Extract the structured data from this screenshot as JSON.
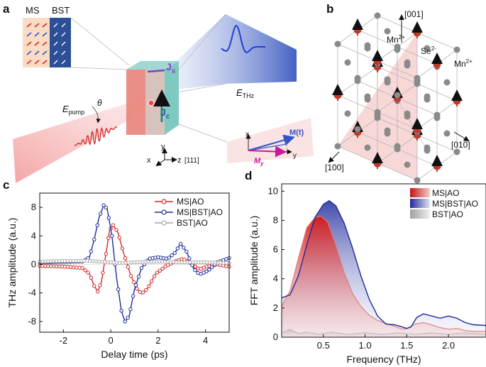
{
  "panels": {
    "a": {
      "label": "a",
      "ms_label": "MS",
      "bst_label": "BST",
      "js_label": "J",
      "js_sub": "s",
      "jc_label": "J",
      "jc_sub": "c",
      "ethz_label": "E",
      "ethz_sub": "THz",
      "epump_label": "E",
      "epump_sub": "pump",
      "theta_label": "θ",
      "axis_x": "x",
      "axis_y": "y",
      "axis_z": "z",
      "axis_111": "[111]",
      "inset_x": "x",
      "inset_y": "y",
      "m_t": "M(t)",
      "m_y": "M",
      "m_y_sub": "y"
    },
    "b": {
      "label": "b",
      "dir_001": "[001]",
      "dir_010": "[010]",
      "dir_100": "[100]",
      "mn_top": "Mn",
      "mn_top_sup": "2+",
      "mn_right": "Mn",
      "mn_right_sup": "2+",
      "se": "Se",
      "se_sup": "2-"
    }
  },
  "colors": {
    "ms": "#d62728",
    "msbst": "#1f2a9c",
    "bst": "#a6a6a6",
    "mn_red": "#c0392b",
    "mn_blue": "#3050d0",
    "se_gray": "#8a8a8a"
  },
  "chart_data": [
    {
      "id": "c",
      "panel_label": "c",
      "type": "line",
      "xlabel": "Delay time (ps)",
      "ylabel": "THz amplitude (a.u.)",
      "xlim": [
        -3,
        5
      ],
      "ylim": [
        -9.5,
        10
      ],
      "xticks": [
        -2,
        0,
        2,
        4
      ],
      "yticks": [
        -8,
        -4,
        0,
        4,
        8
      ],
      "legend_position": "top-right",
      "series": [
        {
          "name": "MS|AO",
          "points": [
            [
              -3,
              -0.2
            ],
            [
              -2,
              -0.3
            ],
            [
              -1.2,
              -0.5
            ],
            [
              -0.9,
              -1.3
            ],
            [
              -0.7,
              -3.0
            ],
            [
              -0.55,
              -3.8
            ],
            [
              -0.4,
              -2.5
            ],
            [
              -0.2,
              1.5
            ],
            [
              -0.05,
              4.8
            ],
            [
              0.1,
              5.5
            ],
            [
              0.3,
              4.5
            ],
            [
              0.55,
              1.5
            ],
            [
              0.85,
              -1.6
            ],
            [
              1.1,
              -3.4
            ],
            [
              1.3,
              -4.1
            ],
            [
              1.55,
              -3.4
            ],
            [
              1.9,
              -1.3
            ],
            [
              2.3,
              -0.3
            ],
            [
              2.7,
              0.4
            ],
            [
              3.05,
              0.8
            ],
            [
              3.4,
              0.1
            ],
            [
              3.75,
              -0.7
            ],
            [
              4.05,
              -0.3
            ],
            [
              4.5,
              0.0
            ],
            [
              5,
              -0.3
            ]
          ]
        },
        {
          "name": "MS|BST|AO",
          "points": [
            [
              -3,
              0.3
            ],
            [
              -2,
              0.35
            ],
            [
              -1.2,
              0.4
            ],
            [
              -0.9,
              1.0
            ],
            [
              -0.7,
              3.5
            ],
            [
              -0.5,
              6.5
            ],
            [
              -0.3,
              8.3
            ],
            [
              -0.15,
              7.8
            ],
            [
              0.05,
              4.0
            ],
            [
              0.25,
              -2.0
            ],
            [
              0.45,
              -6.5
            ],
            [
              0.6,
              -8.0
            ],
            [
              0.78,
              -7.2
            ],
            [
              1.0,
              -3.5
            ],
            [
              1.3,
              -0.5
            ],
            [
              1.6,
              0.8
            ],
            [
              2.0,
              1.0
            ],
            [
              2.4,
              0.8
            ],
            [
              2.7,
              1.6
            ],
            [
              2.95,
              2.9
            ],
            [
              3.2,
              1.8
            ],
            [
              3.5,
              -0.6
            ],
            [
              3.75,
              -1.4
            ],
            [
              4.1,
              -0.9
            ],
            [
              4.5,
              0.3
            ],
            [
              5,
              0.9
            ]
          ]
        },
        {
          "name": "BST|AO",
          "points": [
            [
              -3,
              0.4
            ],
            [
              -2,
              0.5
            ],
            [
              -1,
              0.5
            ],
            [
              -0.5,
              0.4
            ],
            [
              0,
              0.3
            ],
            [
              0.5,
              0.2
            ],
            [
              1,
              0.3
            ],
            [
              2,
              0.4
            ],
            [
              3,
              0.3
            ],
            [
              4,
              0.3
            ],
            [
              5,
              0.2
            ]
          ]
        }
      ]
    },
    {
      "id": "d",
      "panel_label": "d",
      "type": "area",
      "xlabel": "Frequency (THz)",
      "ylabel": "FFT amplitude (a.u.)",
      "xlim": [
        0,
        2.45
      ],
      "ylim": [
        0,
        10.5
      ],
      "xticks": [
        0.5,
        1.0,
        1.5,
        2.0
      ],
      "yticks": [
        0,
        2,
        4,
        6,
        8,
        10
      ],
      "legend_position": "top-right",
      "series": [
        {
          "name": "MS|AO",
          "points": [
            [
              0,
              2.1
            ],
            [
              0.1,
              3.2
            ],
            [
              0.2,
              5.4
            ],
            [
              0.3,
              7.5
            ],
            [
              0.4,
              8.2
            ],
            [
              0.47,
              8.3
            ],
            [
              0.55,
              7.9
            ],
            [
              0.65,
              6.3
            ],
            [
              0.75,
              4.4
            ],
            [
              0.85,
              3.0
            ],
            [
              0.95,
              2.1
            ],
            [
              1.05,
              1.5
            ],
            [
              1.15,
              1.15
            ],
            [
              1.3,
              0.85
            ],
            [
              1.45,
              0.55
            ],
            [
              1.5,
              0.6
            ],
            [
              1.6,
              0.9
            ],
            [
              1.7,
              1.0
            ],
            [
              1.8,
              0.85
            ],
            [
              1.9,
              0.65
            ],
            [
              2.0,
              0.55
            ],
            [
              2.1,
              0.6
            ],
            [
              2.2,
              0.45
            ],
            [
              2.3,
              0.4
            ],
            [
              2.45,
              0.4
            ]
          ]
        },
        {
          "name": "MS|BST|AO",
          "points": [
            [
              0,
              2.7
            ],
            [
              0.1,
              2.9
            ],
            [
              0.2,
              4.2
            ],
            [
              0.3,
              6.3
            ],
            [
              0.4,
              8.2
            ],
            [
              0.5,
              9.1
            ],
            [
              0.57,
              9.35
            ],
            [
              0.65,
              9.0
            ],
            [
              0.75,
              7.8
            ],
            [
              0.85,
              6.1
            ],
            [
              0.95,
              4.2
            ],
            [
              1.05,
              2.6
            ],
            [
              1.15,
              1.45
            ],
            [
              1.25,
              0.9
            ],
            [
              1.35,
              0.85
            ],
            [
              1.42,
              0.75
            ],
            [
              1.5,
              0.6
            ],
            [
              1.55,
              0.7
            ],
            [
              1.62,
              1.35
            ],
            [
              1.7,
              1.6
            ],
            [
              1.8,
              1.45
            ],
            [
              1.9,
              1.3
            ],
            [
              2.0,
              1.45
            ],
            [
              2.1,
              1.3
            ],
            [
              2.2,
              1.0
            ],
            [
              2.3,
              0.85
            ],
            [
              2.45,
              0.8
            ]
          ]
        },
        {
          "name": "BST|AO",
          "points": [
            [
              0,
              0.3
            ],
            [
              0.1,
              0.55
            ],
            [
              0.2,
              0.25
            ],
            [
              0.3,
              0.35
            ],
            [
              0.45,
              0.2
            ],
            [
              0.6,
              0.35
            ],
            [
              0.8,
              0.2
            ],
            [
              1.0,
              0.3
            ],
            [
              1.2,
              0.2
            ],
            [
              1.4,
              0.3
            ],
            [
              1.6,
              0.2
            ],
            [
              1.8,
              0.3
            ],
            [
              2.0,
              0.2
            ],
            [
              2.2,
              0.3
            ],
            [
              2.45,
              0.2
            ]
          ]
        }
      ]
    }
  ]
}
